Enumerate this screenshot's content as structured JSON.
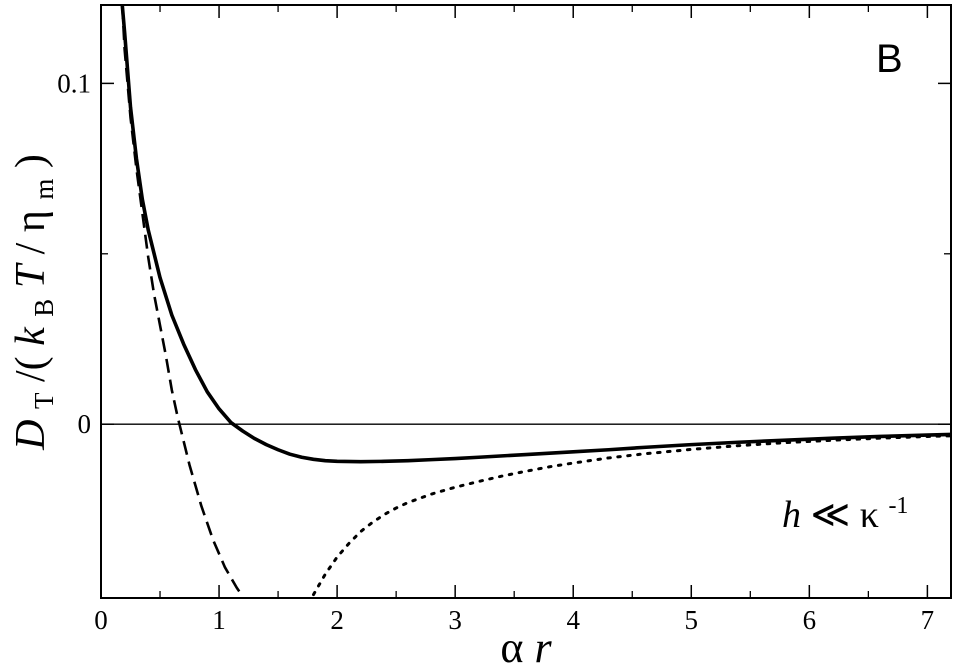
{
  "chart_data": {
    "type": "line",
    "panel_label": "B",
    "xlabel": {
      "greek": "α",
      "var": "r"
    },
    "ylabel": {
      "D": "D",
      "T_sub": "T",
      "slash_open": "/(",
      "k": "k",
      "B_sub": "B",
      "T": "T",
      "slash": "/",
      "eta": "η",
      "m_sub": "m",
      "close": ")"
    },
    "annotation": {
      "h": "h",
      "rel": " ≪ ",
      "kappa": "κ",
      "sup": "-1"
    },
    "xlim": [
      0,
      7.2
    ],
    "ylim": [
      -0.051,
      0.123
    ],
    "x_ticks": [
      {
        "v": 0,
        "label": "0"
      },
      {
        "v": 1,
        "label": "1"
      },
      {
        "v": 2,
        "label": "2"
      },
      {
        "v": 3,
        "label": "3"
      },
      {
        "v": 4,
        "label": "4"
      },
      {
        "v": 5,
        "label": "5"
      },
      {
        "v": 6,
        "label": "6"
      },
      {
        "v": 7,
        "label": "7"
      }
    ],
    "y_ticks": [
      {
        "v": 0,
        "label": "0"
      },
      {
        "v": 0.1,
        "label": "0.1"
      }
    ],
    "y_minor_ticks": [
      0.05
    ],
    "x_minor_step": 0.5,
    "zero_line": true,
    "series": [
      {
        "style": "solid",
        "x": [
          0.18,
          0.2,
          0.25,
          0.3,
          0.35,
          0.4,
          0.5,
          0.6,
          0.7,
          0.8,
          0.9,
          1.0,
          1.1,
          1.2,
          1.3,
          1.4,
          1.5,
          1.6,
          1.7,
          1.8,
          1.9,
          2.0,
          2.2,
          2.4,
          2.6,
          2.8,
          3.0,
          3.2,
          3.4,
          3.6,
          3.8,
          4.0,
          4.3,
          4.6,
          5.0,
          5.4,
          5.8,
          6.2,
          6.6,
          7.0,
          7.2
        ],
        "y": [
          0.123,
          0.115,
          0.093,
          0.078,
          0.066,
          0.057,
          0.043,
          0.032,
          0.0235,
          0.016,
          0.0095,
          0.0045,
          0.0005,
          -0.002,
          -0.0042,
          -0.006,
          -0.0075,
          -0.0088,
          -0.0097,
          -0.0103,
          -0.0107,
          -0.0109,
          -0.011,
          -0.0109,
          -0.0107,
          -0.0104,
          -0.0101,
          -0.0097,
          -0.0093,
          -0.0089,
          -0.0085,
          -0.0081,
          -0.0075,
          -0.0068,
          -0.006,
          -0.0053,
          -0.0047,
          -0.0041,
          -0.0036,
          -0.0032,
          -0.003
        ]
      },
      {
        "style": "dashed",
        "x": [
          0.18,
          0.2,
          0.25,
          0.3,
          0.35,
          0.4,
          0.45,
          0.5,
          0.55,
          0.6,
          0.65,
          0.7,
          0.75,
          0.8,
          0.85,
          0.9,
          0.95,
          1.0,
          1.05,
          1.1,
          1.15,
          1.2
        ],
        "y": [
          0.123,
          0.11,
          0.09,
          0.075,
          0.062,
          0.049,
          0.038,
          0.029,
          0.02,
          0.01,
          0.002,
          -0.005,
          -0.012,
          -0.018,
          -0.024,
          -0.029,
          -0.034,
          -0.038,
          -0.042,
          -0.045,
          -0.048,
          -0.0505
        ]
      },
      {
        "style": "dotted",
        "x": [
          1.8,
          1.9,
          2.0,
          2.1,
          2.2,
          2.3,
          2.4,
          2.5,
          2.6,
          2.8,
          3.0,
          3.2,
          3.4,
          3.6,
          3.8,
          4.0,
          4.3,
          4.6,
          5.0,
          5.4,
          5.8,
          6.2,
          6.6,
          7.0,
          7.2
        ],
        "y": [
          -0.05,
          -0.044,
          -0.039,
          -0.035,
          -0.0315,
          -0.0288,
          -0.0265,
          -0.0246,
          -0.023,
          -0.0205,
          -0.0185,
          -0.0168,
          -0.0152,
          -0.0138,
          -0.0125,
          -0.0114,
          -0.0099,
          -0.0087,
          -0.0074,
          -0.0063,
          -0.0054,
          -0.0047,
          -0.0041,
          -0.0036,
          -0.0034
        ]
      }
    ]
  }
}
